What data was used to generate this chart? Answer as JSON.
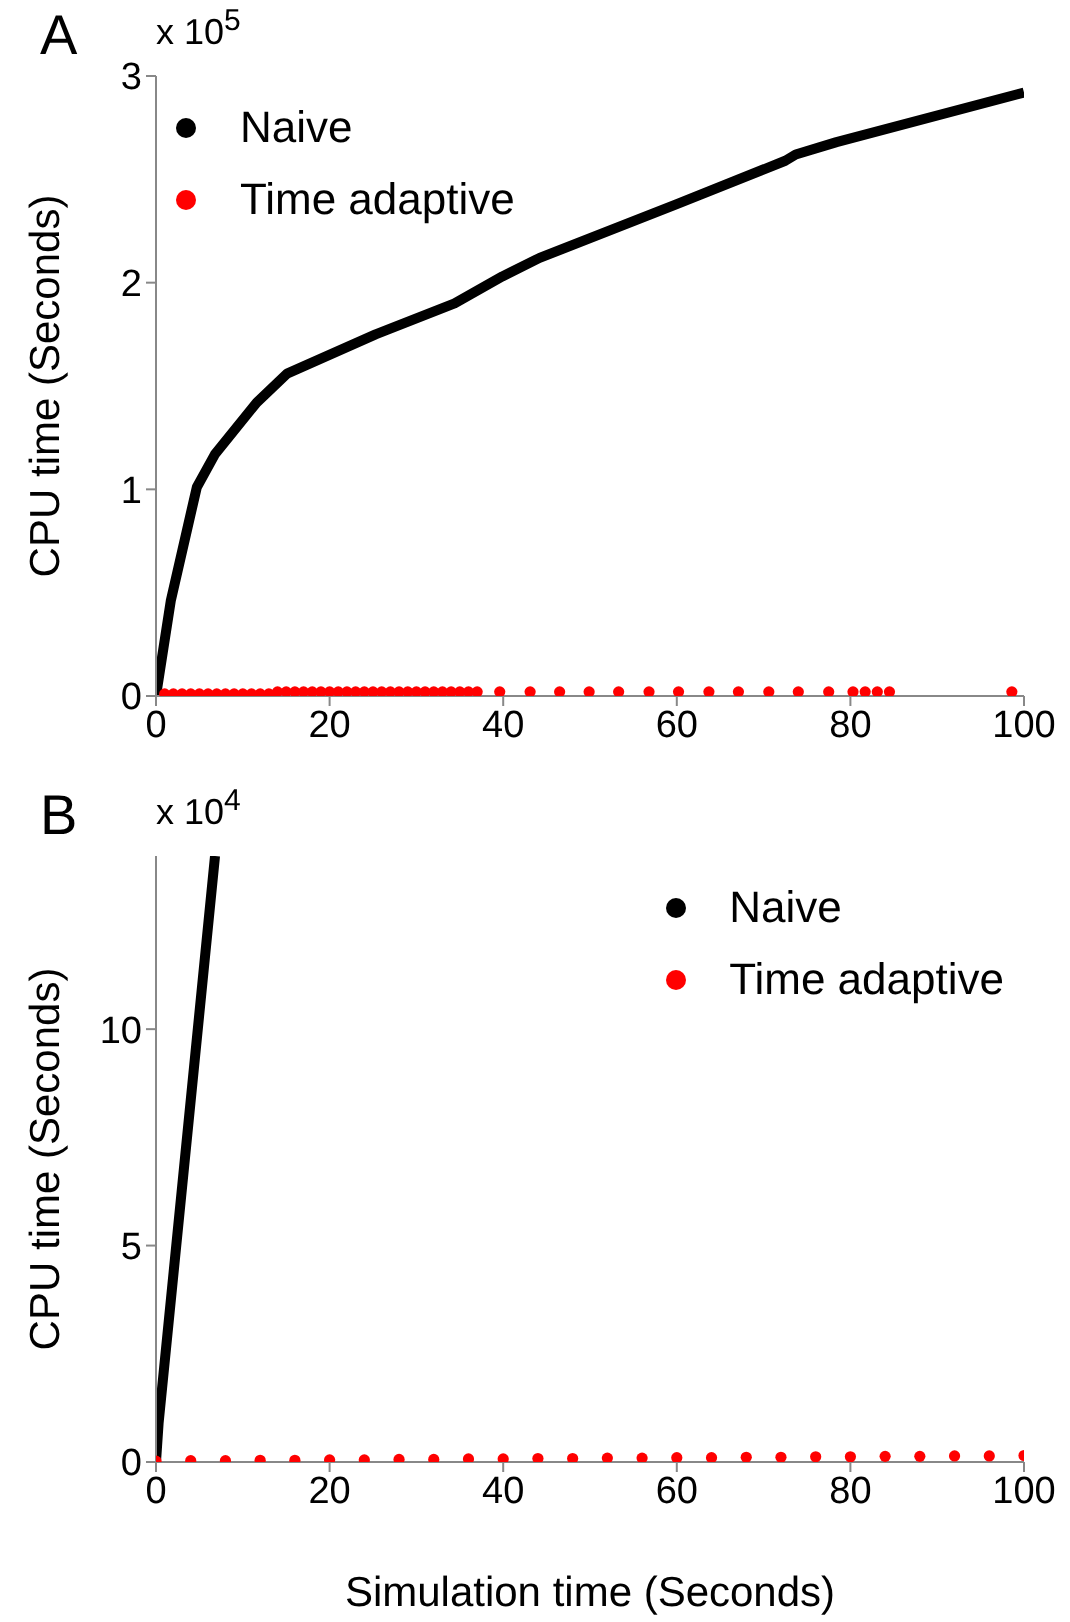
{
  "chart_data": [
    {
      "type": "line",
      "ylabel": "CPU time (Seconds)",
      "annotations": [
        "A",
        "x 10$^{5}$"
      ],
      "xlim": [
        0,
        100
      ],
      "xticks": [
        0,
        20,
        40,
        60,
        80,
        100
      ],
      "ylim": [
        0,
        3
      ],
      "yticks": [
        0,
        1,
        2,
        3
      ],
      "legend": "top left",
      "series": [
        {
          "name": "Naive",
          "color": "#000000",
          "x": [
            0,
            1.7,
            4.7,
            6.8,
            11.6,
            15.1,
            25.3,
            34.4,
            39.9,
            44.2,
            60,
            72.5,
            73.7,
            78.4,
            100
          ],
          "values": [
            0,
            0.46,
            1.01,
            1.17,
            1.42,
            1.56,
            1.75,
            1.9,
            2.03,
            2.12,
            2.38,
            2.59,
            2.62,
            2.68,
            2.92
          ]
        },
        {
          "name": "Time adaptive",
          "type": "scatter",
          "marker": "circle",
          "color": "#ff0000",
          "x": [
            1,
            2,
            3,
            4,
            5,
            6,
            7,
            8,
            9,
            10,
            11,
            12,
            13,
            14,
            15,
            16,
            17,
            18,
            19,
            20,
            21,
            22,
            23,
            24,
            25,
            26,
            27,
            28,
            29,
            30,
            31,
            32,
            33,
            34,
            35,
            36,
            37,
            39.6,
            43.1,
            46.5,
            49.9,
            53.3,
            56.8,
            60.2,
            63.7,
            67.1,
            70.6,
            74,
            77.5,
            80.3,
            81.7,
            83.1,
            84.5,
            98.6
          ],
          "values": [
            0.01,
            0.01,
            0.01,
            0.01,
            0.01,
            0.01,
            0.01,
            0.01,
            0.01,
            0.01,
            0.01,
            0.01,
            0.01,
            0.02,
            0.02,
            0.02,
            0.02,
            0.02,
            0.02,
            0.02,
            0.02,
            0.02,
            0.02,
            0.02,
            0.02,
            0.02,
            0.02,
            0.02,
            0.02,
            0.02,
            0.02,
            0.02,
            0.02,
            0.02,
            0.02,
            0.02,
            0.02,
            0.02,
            0.02,
            0.02,
            0.02,
            0.02,
            0.02,
            0.02,
            0.02,
            0.02,
            0.02,
            0.02,
            0.02,
            0.02,
            0.02,
            0.02,
            0.02,
            0.02
          ]
        }
      ]
    },
    {
      "type": "line",
      "xlabel": "Simulation time (Seconds)",
      "ylabel": "CPU time (Seconds)",
      "annotations": [
        "B",
        "x 10$^{4}$"
      ],
      "xlim": [
        0,
        100
      ],
      "xticks": [
        0,
        20,
        40,
        60,
        80,
        100
      ],
      "ylim": [
        0,
        14
      ],
      "yticks": [
        0,
        5,
        10
      ],
      "legend": "top right",
      "series": [
        {
          "name": "Naive",
          "color": "#000000",
          "x": [
            0,
            0.3,
            6.8
          ],
          "values": [
            0,
            0.9,
            14
          ]
        },
        {
          "name": "Time adaptive",
          "type": "scatter",
          "marker": "circle",
          "color": "#ff0000",
          "x": [
            0,
            4,
            8,
            12,
            16,
            20,
            24,
            28,
            32,
            36,
            40,
            44,
            48,
            52,
            56,
            60,
            64,
            68,
            72,
            76,
            80,
            84,
            88,
            92,
            96,
            100
          ],
          "values": [
            0.02,
            0.03,
            0.03,
            0.04,
            0.04,
            0.05,
            0.05,
            0.06,
            0.06,
            0.07,
            0.07,
            0.08,
            0.08,
            0.09,
            0.09,
            0.1,
            0.1,
            0.11,
            0.11,
            0.12,
            0.12,
            0.13,
            0.13,
            0.14,
            0.14,
            0.15
          ]
        }
      ]
    }
  ]
}
